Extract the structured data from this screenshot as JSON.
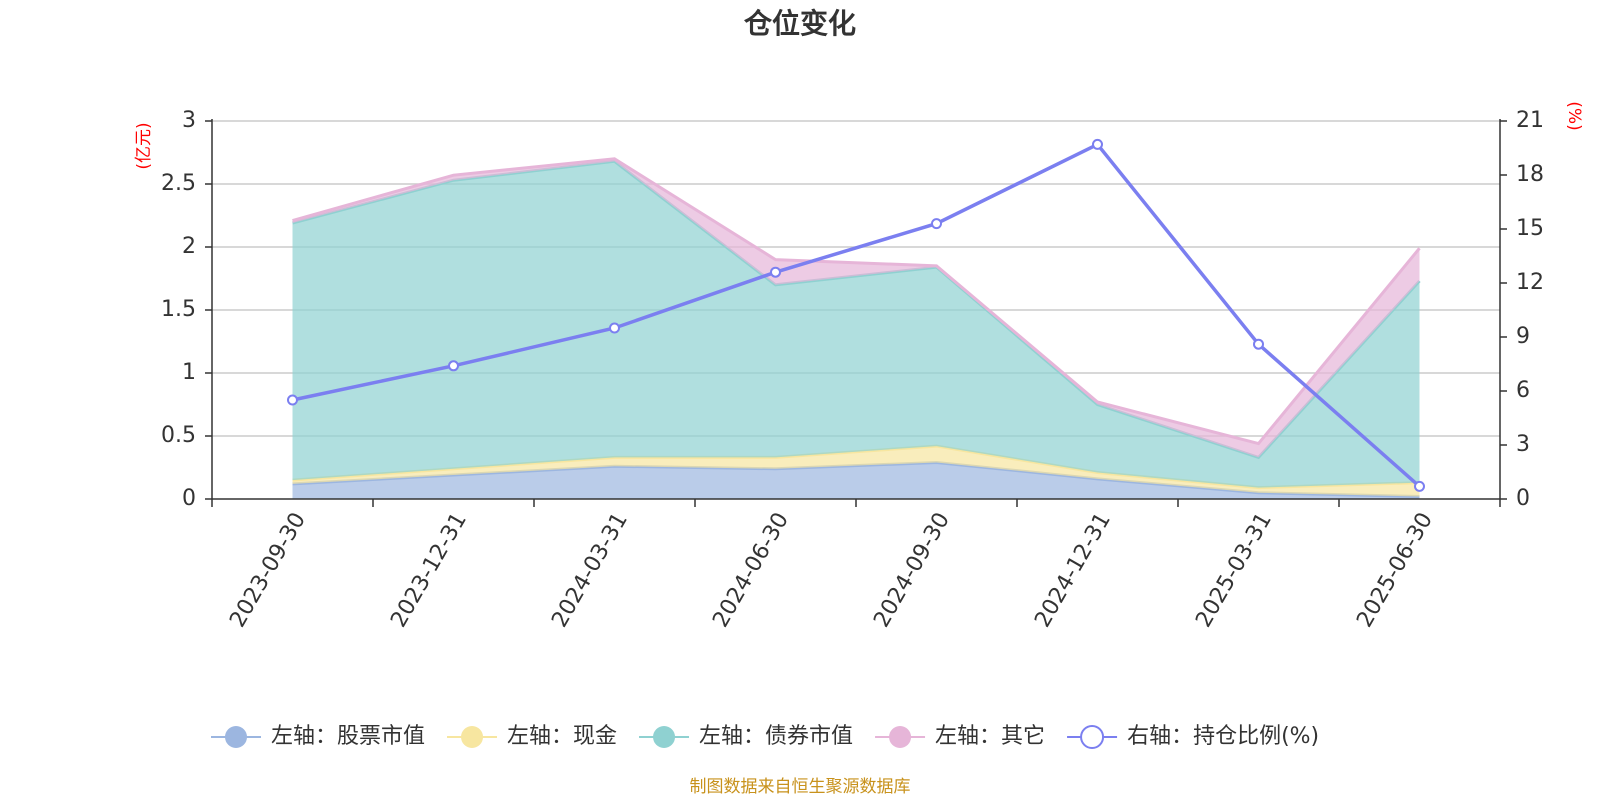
{
  "chart_data": {
    "type": "area",
    "title": "仓位变化",
    "left_axis": {
      "unit": "(亿元)",
      "ylim": [
        0,
        3
      ],
      "ticks": [
        "0",
        "0.5",
        "1",
        "1.5",
        "2",
        "2.5",
        "3"
      ]
    },
    "right_axis": {
      "unit": "(%)",
      "ylim": [
        0,
        21
      ],
      "ticks": [
        "0",
        "3",
        "6",
        "9",
        "12",
        "15",
        "18",
        "21"
      ]
    },
    "categories": [
      "2023-09-30",
      "2023-12-31",
      "2024-03-31",
      "2024-06-30",
      "2024-09-30",
      "2024-12-31",
      "2025-03-31",
      "2025-06-30"
    ],
    "stack_series": [
      {
        "name": "左轴：股票市值",
        "color": "#9cb6e0",
        "values": [
          0.12,
          0.19,
          0.26,
          0.24,
          0.29,
          0.16,
          0.05,
          0.02
        ]
      },
      {
        "name": "左轴：现金",
        "color": "#f7e6a0",
        "values": [
          0.03,
          0.05,
          0.07,
          0.09,
          0.13,
          0.05,
          0.04,
          0.11
        ]
      },
      {
        "name": "左轴：债券市值",
        "color": "#8fd1d1",
        "values": [
          2.04,
          2.29,
          2.35,
          1.37,
          1.42,
          0.54,
          0.24,
          1.6
        ]
      },
      {
        "name": "左轴：其它",
        "color": "#e6b5d8",
        "values": [
          0.02,
          0.04,
          0.02,
          0.2,
          0.01,
          0.02,
          0.11,
          0.26
        ]
      }
    ],
    "line_series": {
      "name": "右轴：持仓比例(%)",
      "color": "#7b7ff0",
      "values": [
        5.5,
        7.4,
        9.5,
        12.6,
        15.3,
        19.7,
        8.6,
        0.7
      ]
    },
    "grid": true,
    "legend_position": "bottom"
  },
  "source_note": "制图数据来自恒生聚源数据库"
}
